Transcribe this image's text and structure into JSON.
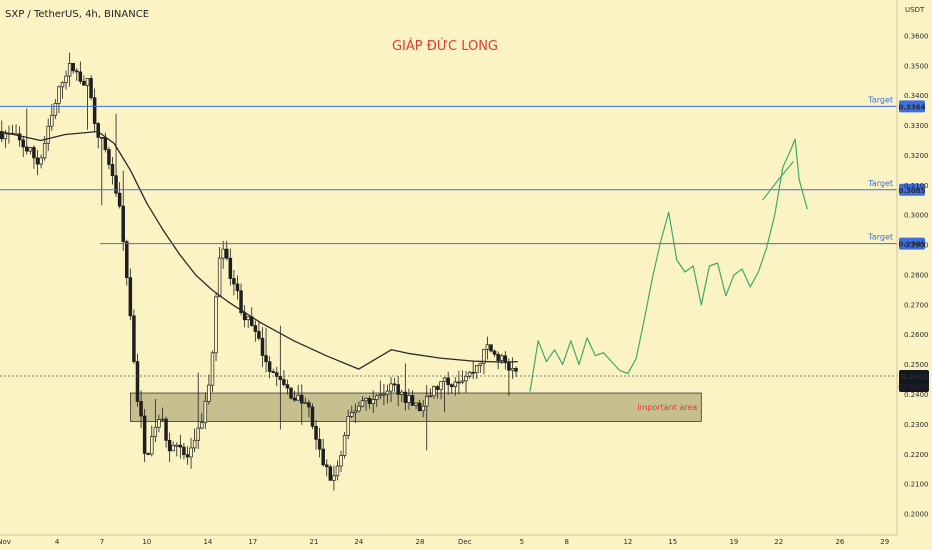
{
  "header": {
    "symbol_line": "SXP / TetherUS, 4h, BINANCE"
  },
  "annotation": {
    "author": "GIÁP ĐỨC LONG",
    "important_area": "Important area"
  },
  "colors": {
    "background": "#fbf3c4",
    "candle": "#1f1f1f",
    "ma_line": "#2a2a2a",
    "target_line": "#3d6fe0",
    "projection": "#3fa96a",
    "zone_fill": "#b7ae80",
    "author_text": "#e0393e",
    "price_badge": "#131722"
  },
  "chart_data": {
    "type": "candlestick",
    "y_axis_unit": "USDT",
    "ylim": [
      0.193,
      0.372
    ],
    "y_ticks": [
      "0.2000",
      "0.2100",
      "0.2200",
      "0.2300",
      "0.2400",
      "0.2500",
      "0.2600",
      "0.2700",
      "0.2800",
      "0.2900",
      "0.3000",
      "0.3100",
      "0.3200",
      "0.3300",
      "0.3400",
      "0.3500",
      "0.3600"
    ],
    "x_tick_labels": [
      {
        "label": "Nov",
        "pos": 0.5
      },
      {
        "label": "4",
        "pos": 7
      },
      {
        "label": "7",
        "pos": 12.5
      },
      {
        "label": "10",
        "pos": 18
      },
      {
        "label": "14",
        "pos": 25.5
      },
      {
        "label": "17",
        "pos": 31
      },
      {
        "label": "21",
        "pos": 38.5
      },
      {
        "label": "24",
        "pos": 44
      },
      {
        "label": "28",
        "pos": 51.5
      },
      {
        "label": "Dec",
        "pos": 57
      },
      {
        "label": "5",
        "pos": 64
      },
      {
        "label": "8",
        "pos": 69.5
      },
      {
        "label": "12",
        "pos": 77
      },
      {
        "label": "15",
        "pos": 82.5
      },
      {
        "label": "19",
        "pos": 90
      },
      {
        "label": "22",
        "pos": 95.5
      },
      {
        "label": "26",
        "pos": 103
      },
      {
        "label": "29",
        "pos": 108.5
      }
    ],
    "x_range": [
      0,
      110
    ],
    "current_price": {
      "value": 0.2462,
      "label": "0.2462",
      "countdown": "02:48:03"
    },
    "targets": [
      {
        "label": "Target",
        "value": 0.3364,
        "text": "0.3364"
      },
      {
        "label": "Target",
        "value": 0.3085,
        "text": "0.3085"
      },
      {
        "label": "Target",
        "value": 0.2905,
        "text": "0.2905"
      }
    ],
    "support_zone": {
      "x_start": 16,
      "x_end": 86,
      "low": 0.231,
      "high": 0.2405
    },
    "price_path": [
      [
        0,
        0.328
      ],
      [
        2,
        0.326
      ],
      [
        4,
        0.321
      ],
      [
        5,
        0.317
      ],
      [
        6,
        0.327
      ],
      [
        7,
        0.337
      ],
      [
        8,
        0.347
      ],
      [
        9,
        0.35
      ],
      [
        10,
        0.346
      ],
      [
        11,
        0.344
      ],
      [
        12,
        0.33
      ],
      [
        13,
        0.322
      ],
      [
        14,
        0.314
      ],
      [
        15,
        0.3
      ],
      [
        16,
        0.273
      ],
      [
        17,
        0.24
      ],
      [
        17.5,
        0.232
      ],
      [
        18,
        0.218
      ],
      [
        19,
        0.227
      ],
      [
        20,
        0.232
      ],
      [
        21,
        0.222
      ],
      [
        22,
        0.225
      ],
      [
        23,
        0.218
      ],
      [
        24,
        0.222
      ],
      [
        25,
        0.232
      ],
      [
        26,
        0.245
      ],
      [
        26.5,
        0.262
      ],
      [
        27,
        0.284
      ],
      [
        27.5,
        0.292
      ],
      [
        28,
        0.284
      ],
      [
        29,
        0.277
      ],
      [
        30,
        0.267
      ],
      [
        31,
        0.263
      ],
      [
        32,
        0.257
      ],
      [
        33,
        0.251
      ],
      [
        34,
        0.246
      ],
      [
        35,
        0.243
      ],
      [
        36,
        0.24
      ],
      [
        37,
        0.238
      ],
      [
        38,
        0.236
      ],
      [
        39,
        0.224
      ],
      [
        40,
        0.216
      ],
      [
        41,
        0.211
      ],
      [
        42,
        0.219
      ],
      [
        43,
        0.232
      ],
      [
        44,
        0.236
      ],
      [
        45,
        0.239
      ],
      [
        46,
        0.238
      ],
      [
        47,
        0.24
      ],
      [
        48,
        0.243
      ],
      [
        49,
        0.242
      ],
      [
        50,
        0.239
      ],
      [
        51,
        0.236
      ],
      [
        52,
        0.235
      ],
      [
        53,
        0.24
      ],
      [
        54,
        0.243
      ],
      [
        55,
        0.244
      ],
      [
        56,
        0.245
      ],
      [
        57,
        0.246
      ],
      [
        58,
        0.247
      ],
      [
        59,
        0.251
      ],
      [
        60,
        0.256
      ],
      [
        61,
        0.253
      ],
      [
        62,
        0.251
      ],
      [
        63,
        0.247
      ],
      [
        63.5,
        0.2462
      ]
    ],
    "series": [
      {
        "name": "",
        "type": "moving_average",
        "points": [
          [
            0,
            0.328
          ],
          [
            5,
            0.325
          ],
          [
            8,
            0.327
          ],
          [
            12,
            0.328
          ],
          [
            14,
            0.324
          ],
          [
            16,
            0.315
          ],
          [
            18,
            0.304
          ],
          [
            20,
            0.295
          ],
          [
            22,
            0.287
          ],
          [
            24,
            0.28
          ],
          [
            26,
            0.275
          ],
          [
            28,
            0.271
          ],
          [
            32,
            0.264
          ],
          [
            36,
            0.258
          ],
          [
            40,
            0.253
          ],
          [
            44,
            0.2485
          ],
          [
            48,
            0.255
          ],
          [
            50,
            0.2538
          ],
          [
            54,
            0.2522
          ],
          [
            58,
            0.2512
          ],
          [
            62,
            0.2508
          ],
          [
            63.5,
            0.251
          ]
        ]
      },
      {
        "name": "",
        "type": "projection",
        "points": [
          [
            65,
            0.241
          ],
          [
            66,
            0.258
          ],
          [
            67,
            0.251
          ],
          [
            68,
            0.255
          ],
          [
            69,
            0.25
          ],
          [
            70,
            0.258
          ],
          [
            71,
            0.25
          ],
          [
            72,
            0.259
          ],
          [
            73,
            0.253
          ],
          [
            74,
            0.254
          ],
          [
            75,
            0.251
          ],
          [
            76,
            0.248
          ],
          [
            77,
            0.247
          ],
          [
            78,
            0.252
          ],
          [
            79,
            0.265
          ],
          [
            80,
            0.279
          ],
          [
            81,
            0.291
          ],
          [
            82,
            0.301
          ],
          [
            83,
            0.285
          ],
          [
            84,
            0.281
          ],
          [
            85,
            0.283
          ],
          [
            86,
            0.27
          ],
          [
            87,
            0.283
          ],
          [
            88,
            0.284
          ],
          [
            89,
            0.273
          ],
          [
            90,
            0.28
          ],
          [
            91,
            0.282
          ],
          [
            92,
            0.276
          ],
          [
            93,
            0.281
          ],
          [
            94,
            0.289
          ],
          [
            95,
            0.3
          ],
          [
            96,
            0.316
          ],
          [
            97,
            0.322
          ],
          [
            97.5,
            0.3255
          ],
          [
            98,
            0.312
          ],
          [
            99,
            0.302
          ]
        ]
      },
      {
        "name": "",
        "type": "projection-branch",
        "points": [
          [
            93.5,
            0.305
          ],
          [
            95.5,
            0.312
          ],
          [
            97.3,
            0.318
          ]
        ]
      }
    ]
  }
}
